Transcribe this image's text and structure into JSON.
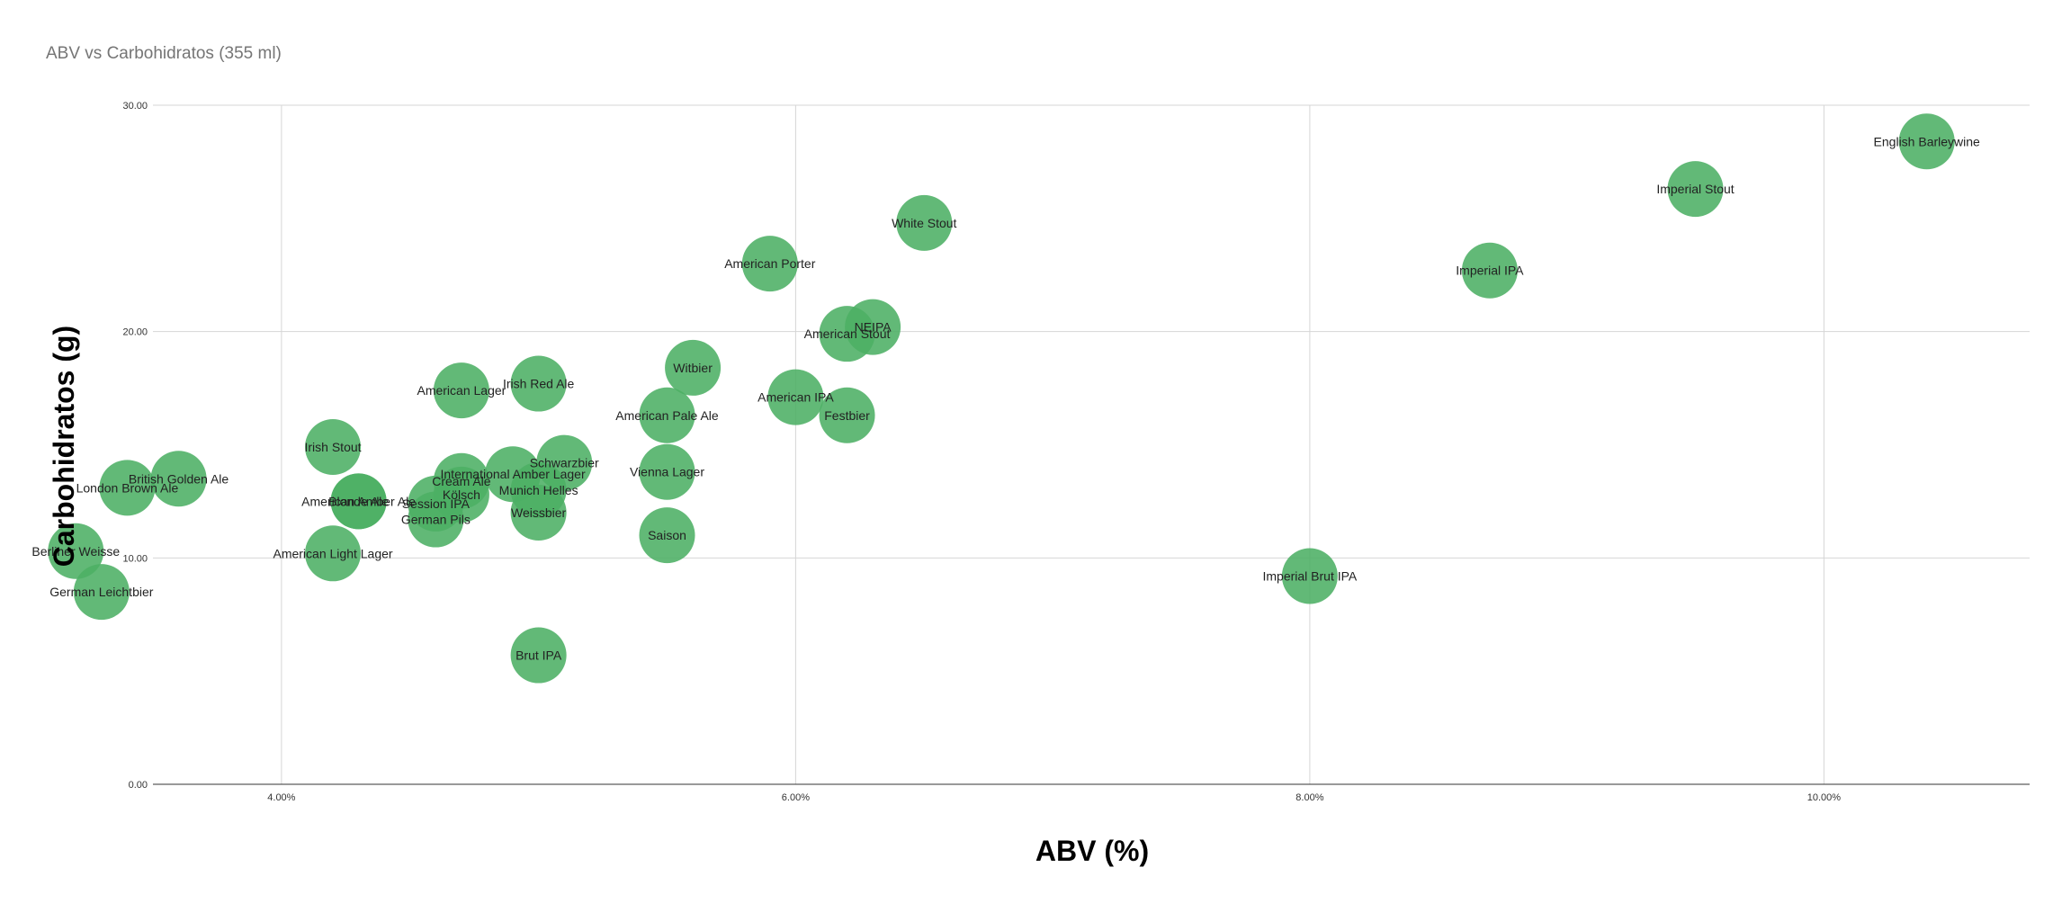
{
  "chart_data": {
    "type": "scatter",
    "title": "ABV vs Carbohidratos (355 ml)",
    "xlabel": "ABV (%)",
    "ylabel": "Carbohidratos (g)",
    "xlim": [
      3.5,
      10.8
    ],
    "ylim": [
      0,
      30
    ],
    "x_ticks": [
      4,
      6,
      8,
      10
    ],
    "x_tick_labels": [
      "4.00%",
      "6.00%",
      "8.00%",
      "10.00%"
    ],
    "y_ticks": [
      0,
      10,
      20,
      30
    ],
    "y_tick_labels": [
      "0.00",
      "10.00",
      "20.00",
      "30.00"
    ],
    "grid": true,
    "legend": "none",
    "point_color": "#4caf64",
    "points": [
      {
        "label": "Berliner Weisse",
        "x": 3.2,
        "y": 10.3
      },
      {
        "label": "German Leichtbier",
        "x": 3.3,
        "y": 8.5
      },
      {
        "label": "London Brown Ale",
        "x": 3.4,
        "y": 13.1
      },
      {
        "label": "British Golden Ale",
        "x": 3.6,
        "y": 13.5
      },
      {
        "label": "Irish Stout",
        "x": 4.2,
        "y": 14.9
      },
      {
        "label": "American Light Lager",
        "x": 4.2,
        "y": 10.2
      },
      {
        "label": "American Amber Ale",
        "x": 4.3,
        "y": 12.5
      },
      {
        "label": "Blonde Ale",
        "x": 4.3,
        "y": 12.5
      },
      {
        "label": "Session IPA",
        "x": 4.6,
        "y": 12.4
      },
      {
        "label": "German Pils",
        "x": 4.6,
        "y": 11.7
      },
      {
        "label": "Cream Ale",
        "x": 4.7,
        "y": 13.4
      },
      {
        "label": "Kölsch",
        "x": 4.7,
        "y": 12.8
      },
      {
        "label": "American Lager",
        "x": 4.7,
        "y": 17.4
      },
      {
        "label": "International Amber Lager",
        "x": 4.9,
        "y": 13.7
      },
      {
        "label": "Munich Helles",
        "x": 5.0,
        "y": 13.0
      },
      {
        "label": "Weissbier",
        "x": 5.0,
        "y": 12.0
      },
      {
        "label": "Irish Red Ale",
        "x": 5.0,
        "y": 17.7
      },
      {
        "label": "Schwarzbier",
        "x": 5.1,
        "y": 14.2
      },
      {
        "label": "Brut IPA",
        "x": 5.0,
        "y": 5.7
      },
      {
        "label": "American Pale Ale",
        "x": 5.5,
        "y": 16.3
      },
      {
        "label": "Vienna Lager",
        "x": 5.5,
        "y": 13.8
      },
      {
        "label": "Saison",
        "x": 5.5,
        "y": 11.0
      },
      {
        "label": "Witbier",
        "x": 5.6,
        "y": 18.4
      },
      {
        "label": "American Porter",
        "x": 5.9,
        "y": 23.0
      },
      {
        "label": "American IPA",
        "x": 6.0,
        "y": 17.1
      },
      {
        "label": "Festbier",
        "x": 6.2,
        "y": 16.3
      },
      {
        "label": "American Stout",
        "x": 6.2,
        "y": 19.9
      },
      {
        "label": "NEIPA",
        "x": 6.3,
        "y": 20.2
      },
      {
        "label": "White Stout",
        "x": 6.5,
        "y": 24.8
      },
      {
        "label": "Imperial Brut IPA",
        "x": 8.0,
        "y": 9.2
      },
      {
        "label": "Imperial IPA",
        "x": 8.7,
        "y": 22.7
      },
      {
        "label": "Imperial Stout",
        "x": 9.5,
        "y": 26.3
      },
      {
        "label": "English Barleywine",
        "x": 10.4,
        "y": 28.4
      }
    ]
  }
}
